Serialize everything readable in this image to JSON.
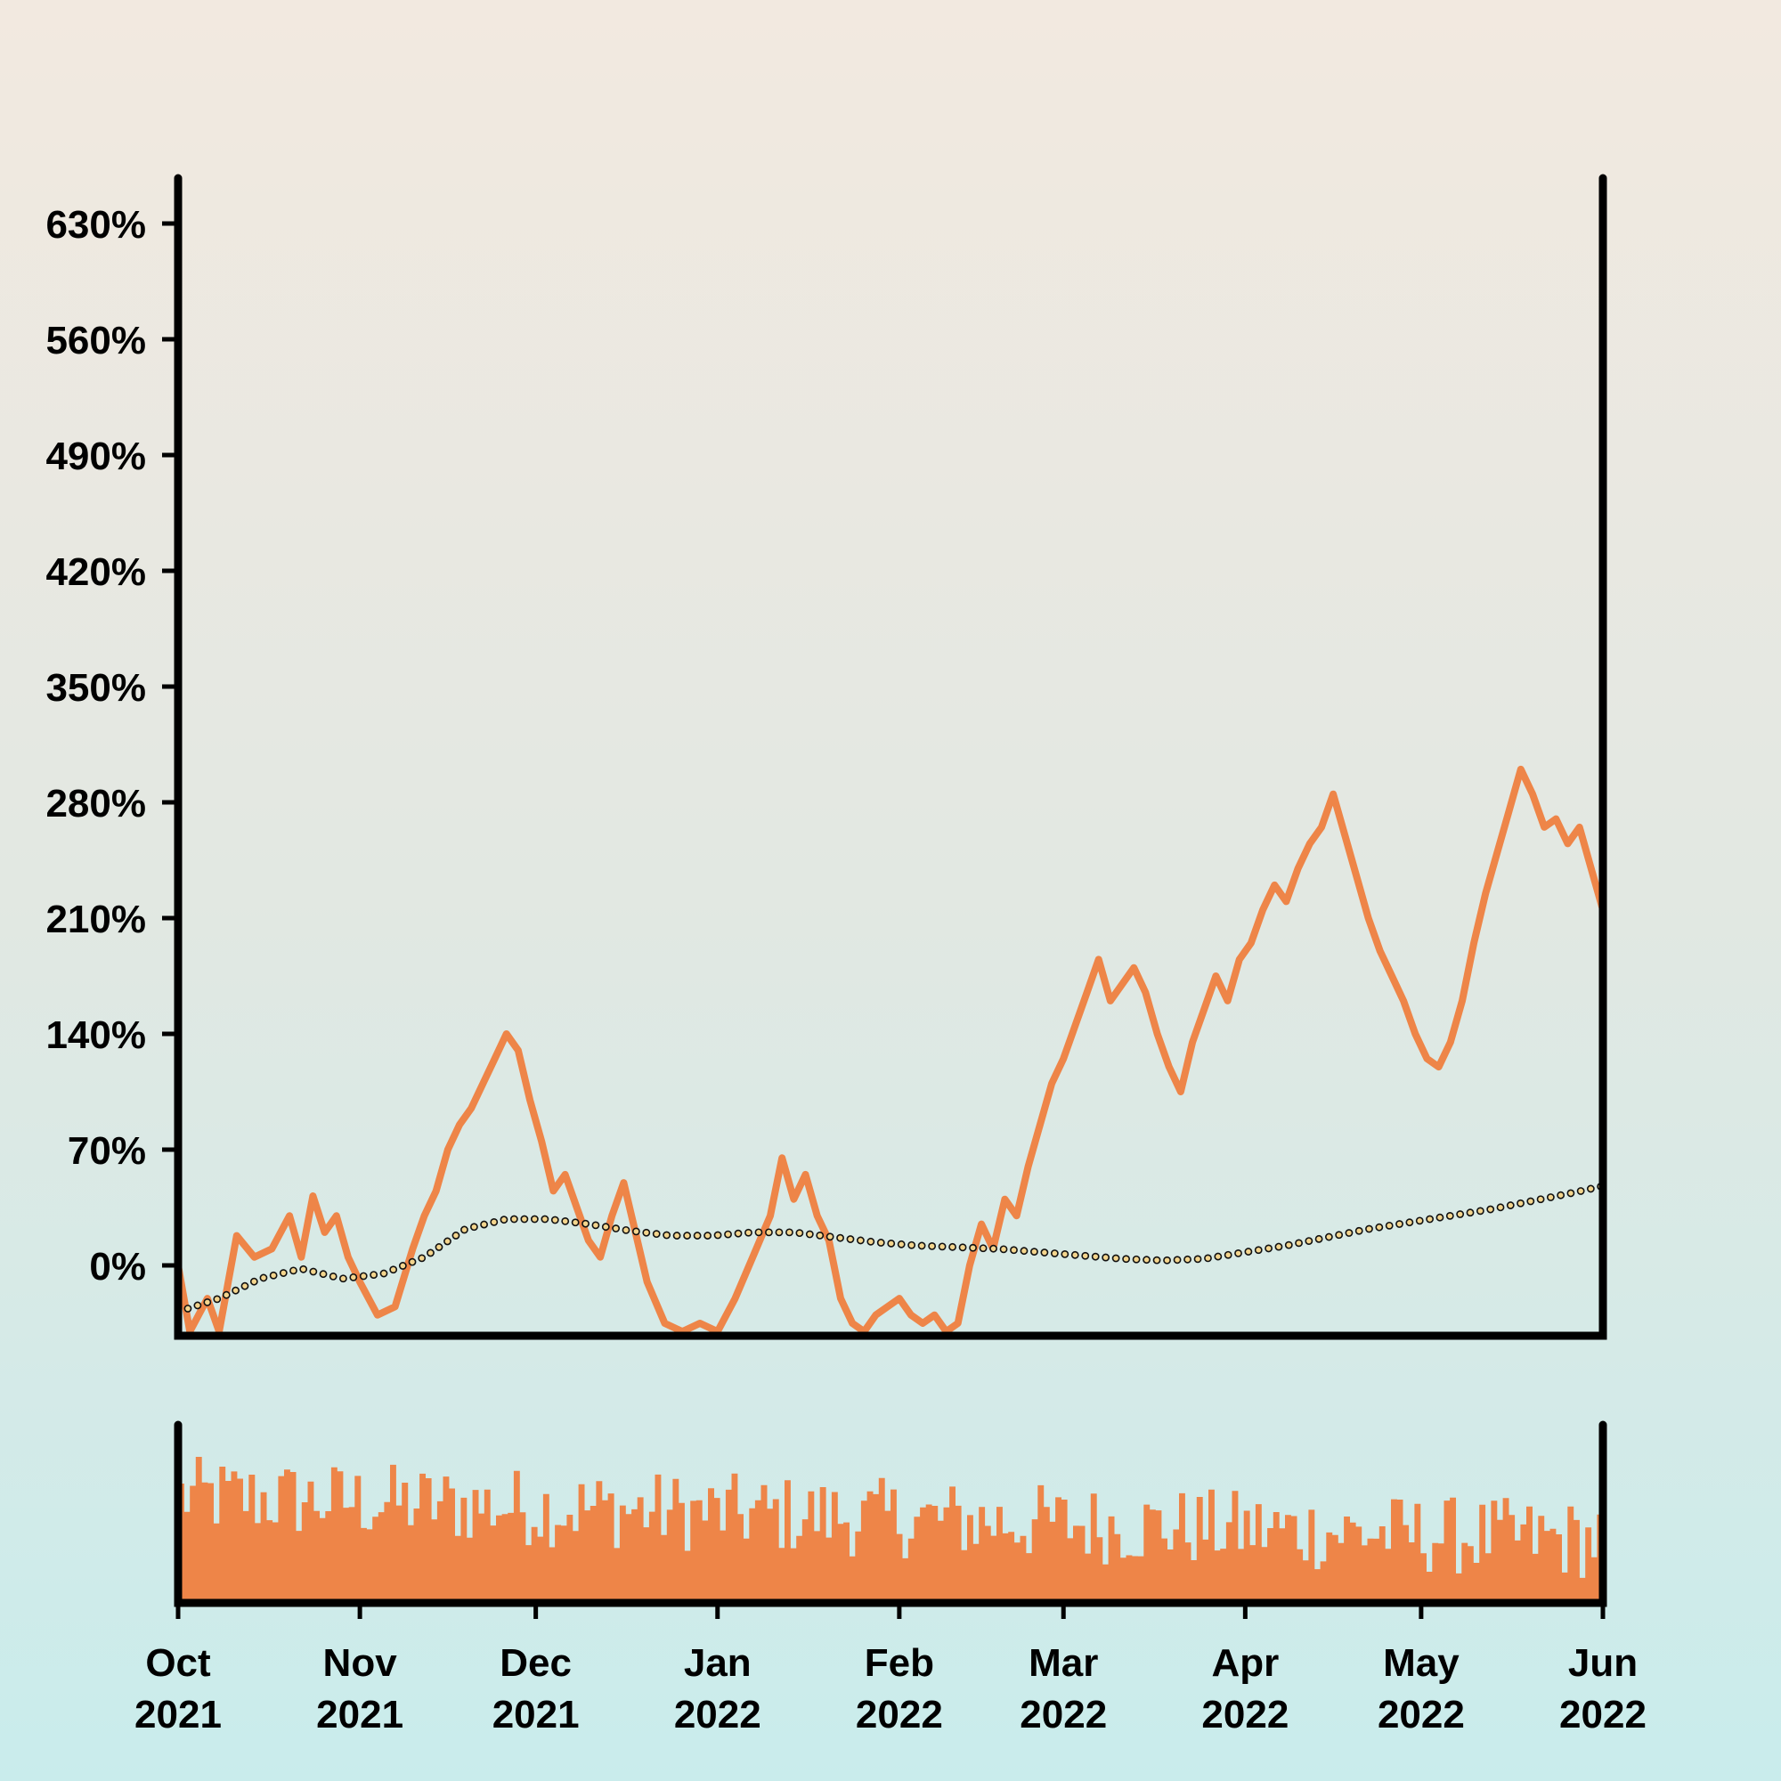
{
  "chart_data": {
    "type": "line",
    "title": "",
    "xlabel": "",
    "ylabel": "",
    "x_range": [
      "2021-10-01",
      "2022-06-01"
    ],
    "ylim": [
      -60,
      660
    ],
    "y_ticks": [
      0,
      70,
      140,
      210,
      280,
      350,
      420,
      490,
      560,
      630
    ],
    "y_tick_labels": [
      "0%",
      "70%",
      "140%",
      "210%",
      "280%",
      "350%",
      "420%",
      "490%",
      "560%",
      "630%"
    ],
    "x_ticks": [
      {
        "date": "2021-10-01",
        "month": "Oct",
        "year": "2021"
      },
      {
        "date": "2021-11-01",
        "month": "Nov",
        "year": "2021"
      },
      {
        "date": "2021-12-01",
        "month": "Dec",
        "year": "2021"
      },
      {
        "date": "2022-01-01",
        "month": "Jan",
        "year": "2022"
      },
      {
        "date": "2022-02-01",
        "month": "Feb",
        "year": "2022"
      },
      {
        "date": "2022-03-01",
        "month": "Mar",
        "year": "2022"
      },
      {
        "date": "2022-04-01",
        "month": "Apr",
        "year": "2022"
      },
      {
        "date": "2022-05-01",
        "month": "May",
        "year": "2022"
      },
      {
        "date": "2022-06-01",
        "month": "Jun",
        "year": "2022"
      }
    ],
    "grid": false,
    "legend": "none",
    "colors": {
      "price": "#ee8548",
      "ma": "#f4d58d",
      "ma_edge": "#111111",
      "axis": "#000000"
    },
    "series": [
      {
        "role": "price",
        "style": "solid line",
        "points": [
          [
            "2021-10-01",
            0
          ],
          [
            "2021-10-03",
            -40
          ],
          [
            "2021-10-06",
            -20
          ],
          [
            "2021-10-08",
            -40
          ],
          [
            "2021-10-11",
            18
          ],
          [
            "2021-10-14",
            5
          ],
          [
            "2021-10-17",
            10
          ],
          [
            "2021-10-20",
            30
          ],
          [
            "2021-10-22",
            5
          ],
          [
            "2021-10-24",
            42
          ],
          [
            "2021-10-26",
            20
          ],
          [
            "2021-10-28",
            30
          ],
          [
            "2021-10-30",
            5
          ],
          [
            "2021-11-01",
            -10
          ],
          [
            "2021-11-04",
            -30
          ],
          [
            "2021-11-07",
            -25
          ],
          [
            "2021-11-10",
            10
          ],
          [
            "2021-11-12",
            30
          ],
          [
            "2021-11-14",
            45
          ],
          [
            "2021-11-16",
            70
          ],
          [
            "2021-11-18",
            85
          ],
          [
            "2021-11-20",
            95
          ],
          [
            "2021-11-22",
            110
          ],
          [
            "2021-11-24",
            125
          ],
          [
            "2021-11-26",
            140
          ],
          [
            "2021-11-28",
            130
          ],
          [
            "2021-11-30",
            100
          ],
          [
            "2021-12-02",
            75
          ],
          [
            "2021-12-04",
            45
          ],
          [
            "2021-12-06",
            55
          ],
          [
            "2021-12-08",
            35
          ],
          [
            "2021-12-10",
            15
          ],
          [
            "2021-12-12",
            5
          ],
          [
            "2021-12-14",
            30
          ],
          [
            "2021-12-16",
            50
          ],
          [
            "2021-12-18",
            20
          ],
          [
            "2021-12-20",
            -10
          ],
          [
            "2021-12-23",
            -35
          ],
          [
            "2021-12-26",
            -40
          ],
          [
            "2021-12-29",
            -35
          ],
          [
            "2022-01-01",
            -40
          ],
          [
            "2022-01-04",
            -20
          ],
          [
            "2022-01-07",
            5
          ],
          [
            "2022-01-10",
            30
          ],
          [
            "2022-01-12",
            65
          ],
          [
            "2022-01-14",
            40
          ],
          [
            "2022-01-16",
            55
          ],
          [
            "2022-01-18",
            30
          ],
          [
            "2022-01-20",
            15
          ],
          [
            "2022-01-22",
            -20
          ],
          [
            "2022-01-24",
            -35
          ],
          [
            "2022-01-26",
            -40
          ],
          [
            "2022-01-28",
            -30
          ],
          [
            "2022-01-30",
            -25
          ],
          [
            "2022-02-01",
            -20
          ],
          [
            "2022-02-03",
            -30
          ],
          [
            "2022-02-05",
            -35
          ],
          [
            "2022-02-07",
            -30
          ],
          [
            "2022-02-09",
            -40
          ],
          [
            "2022-02-11",
            -35
          ],
          [
            "2022-02-13",
            0
          ],
          [
            "2022-02-15",
            25
          ],
          [
            "2022-02-17",
            10
          ],
          [
            "2022-02-19",
            40
          ],
          [
            "2022-02-21",
            30
          ],
          [
            "2022-02-23",
            60
          ],
          [
            "2022-02-25",
            85
          ],
          [
            "2022-02-27",
            110
          ],
          [
            "2022-03-01",
            125
          ],
          [
            "2022-03-03",
            145
          ],
          [
            "2022-03-05",
            165
          ],
          [
            "2022-03-07",
            185
          ],
          [
            "2022-03-09",
            160
          ],
          [
            "2022-03-11",
            170
          ],
          [
            "2022-03-13",
            180
          ],
          [
            "2022-03-15",
            165
          ],
          [
            "2022-03-17",
            140
          ],
          [
            "2022-03-19",
            120
          ],
          [
            "2022-03-21",
            105
          ],
          [
            "2022-03-23",
            135
          ],
          [
            "2022-03-25",
            155
          ],
          [
            "2022-03-27",
            175
          ],
          [
            "2022-03-29",
            160
          ],
          [
            "2022-03-31",
            185
          ],
          [
            "2022-04-02",
            195
          ],
          [
            "2022-04-04",
            215
          ],
          [
            "2022-04-06",
            230
          ],
          [
            "2022-04-08",
            220
          ],
          [
            "2022-04-10",
            240
          ],
          [
            "2022-04-12",
            255
          ],
          [
            "2022-04-14",
            265
          ],
          [
            "2022-04-16",
            285
          ],
          [
            "2022-04-18",
            260
          ],
          [
            "2022-04-20",
            235
          ],
          [
            "2022-04-22",
            210
          ],
          [
            "2022-04-24",
            190
          ],
          [
            "2022-04-26",
            175
          ],
          [
            "2022-04-28",
            160
          ],
          [
            "2022-04-30",
            140
          ],
          [
            "2022-05-02",
            125
          ],
          [
            "2022-05-04",
            120
          ],
          [
            "2022-05-06",
            135
          ],
          [
            "2022-05-08",
            160
          ],
          [
            "2022-05-10",
            195
          ],
          [
            "2022-05-12",
            225
          ],
          [
            "2022-05-14",
            250
          ],
          [
            "2022-05-16",
            275
          ],
          [
            "2022-05-18",
            300
          ],
          [
            "2022-05-20",
            285
          ],
          [
            "2022-05-22",
            265
          ],
          [
            "2022-05-24",
            270
          ],
          [
            "2022-05-26",
            255
          ],
          [
            "2022-05-28",
            265
          ],
          [
            "2022-05-30",
            240
          ],
          [
            "2022-06-01",
            215
          ]
        ]
      },
      {
        "role": "moving average",
        "style": "dotted markers",
        "points": [
          [
            "2021-10-01",
            -28
          ],
          [
            "2021-10-08",
            -20
          ],
          [
            "2021-10-15",
            -8
          ],
          [
            "2021-10-22",
            -2
          ],
          [
            "2021-10-29",
            -8
          ],
          [
            "2021-11-05",
            -5
          ],
          [
            "2021-11-12",
            5
          ],
          [
            "2021-11-19",
            22
          ],
          [
            "2021-11-26",
            28
          ],
          [
            "2021-12-03",
            28
          ],
          [
            "2021-12-10",
            25
          ],
          [
            "2021-12-17",
            21
          ],
          [
            "2021-12-24",
            18
          ],
          [
            "2021-12-31",
            18
          ],
          [
            "2022-01-07",
            20
          ],
          [
            "2022-01-14",
            20
          ],
          [
            "2022-01-21",
            17
          ],
          [
            "2022-01-28",
            14
          ],
          [
            "2022-02-04",
            12
          ],
          [
            "2022-02-11",
            11
          ],
          [
            "2022-02-18",
            10
          ],
          [
            "2022-02-25",
            8
          ],
          [
            "2022-03-04",
            6
          ],
          [
            "2022-03-11",
            4
          ],
          [
            "2022-03-18",
            3
          ],
          [
            "2022-03-25",
            4
          ],
          [
            "2022-04-01",
            8
          ],
          [
            "2022-04-08",
            12
          ],
          [
            "2022-04-15",
            17
          ],
          [
            "2022-04-22",
            22
          ],
          [
            "2022-04-29",
            26
          ],
          [
            "2022-05-06",
            30
          ],
          [
            "2022-05-13",
            34
          ],
          [
            "2022-05-20",
            39
          ],
          [
            "2022-05-27",
            44
          ],
          [
            "2022-06-01",
            48
          ]
        ]
      }
    ],
    "volume": {
      "type": "bar",
      "relative_level_start": 0.6,
      "relative_level_end": 0.35,
      "note_levels": "relative bar heights within the lower panel, 0 to 1"
    }
  }
}
